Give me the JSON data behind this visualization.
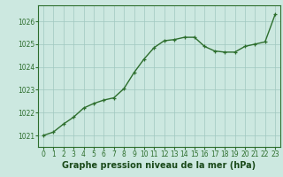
{
  "x": [
    0,
    1,
    2,
    3,
    4,
    5,
    6,
    7,
    8,
    9,
    10,
    11,
    12,
    13,
    14,
    15,
    16,
    17,
    18,
    19,
    20,
    21,
    22,
    23
  ],
  "y": [
    1021.0,
    1021.15,
    1021.5,
    1021.8,
    1022.2,
    1022.4,
    1022.55,
    1022.65,
    1023.05,
    1023.75,
    1024.35,
    1024.85,
    1025.15,
    1025.2,
    1025.3,
    1025.3,
    1024.9,
    1024.7,
    1024.65,
    1024.65,
    1024.9,
    1025.0,
    1025.1,
    1026.3
  ],
  "line_color": "#2d6e2d",
  "marker": "+",
  "marker_size": 3.5,
  "linewidth": 1.0,
  "bg_color": "#cce8e0",
  "grid_color": "#a0c8c0",
  "xlabel": "Graphe pression niveau de la mer (hPa)",
  "xlabel_fontsize": 7.0,
  "xlabel_color": "#1a4a1a",
  "ytick_labels": [
    "1021",
    "1022",
    "1023",
    "1024",
    "1025",
    "1026"
  ],
  "ytick_values": [
    1021,
    1022,
    1023,
    1024,
    1025,
    1026
  ],
  "xtick_labels": [
    "0",
    "1",
    "2",
    "3",
    "4",
    "5",
    "6",
    "7",
    "8",
    "9",
    "10",
    "11",
    "12",
    "13",
    "14",
    "15",
    "16",
    "17",
    "18",
    "19",
    "20",
    "21",
    "22",
    "23"
  ],
  "ylim": [
    1020.5,
    1026.7
  ],
  "xlim": [
    -0.5,
    23.5
  ],
  "tick_color": "#2d6e2d",
  "tick_fontsize": 5.5,
  "border_color": "#2d6e2d"
}
